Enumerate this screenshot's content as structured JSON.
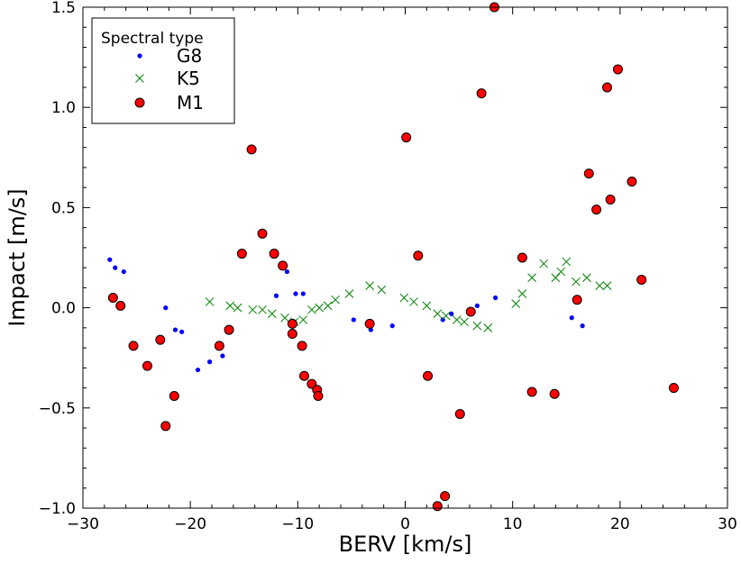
{
  "chart_data": {
    "type": "scatter",
    "xlabel": "BERV [km/s]",
    "ylabel": "Impact [m/s]",
    "xlim": [
      -30,
      30
    ],
    "ylim": [
      -1.0,
      1.5
    ],
    "xticks": [
      -30,
      -20,
      -10,
      0,
      10,
      20,
      30
    ],
    "xtick_labels": [
      "−30",
      "−20",
      "−10",
      "0",
      "10",
      "20",
      "30"
    ],
    "yticks": [
      -1.0,
      -0.5,
      0.0,
      0.5,
      1.0,
      1.5
    ],
    "ytick_labels": [
      "−1.0",
      "−0.5",
      "0.0",
      "0.5",
      "1.0",
      "1.5"
    ],
    "grid": false,
    "legend": {
      "title": "Spectral type",
      "placement": "top-left",
      "entries": [
        "G8",
        "K5",
        "M1"
      ]
    },
    "series": [
      {
        "name": "G8",
        "marker": "dot",
        "color": "#0000ff",
        "points": [
          [
            -27.5,
            0.24
          ],
          [
            -27.0,
            0.2
          ],
          [
            -26.2,
            0.18
          ],
          [
            -22.3,
            0.0
          ],
          [
            -21.4,
            -0.11
          ],
          [
            -20.8,
            -0.12
          ],
          [
            -19.3,
            -0.31
          ],
          [
            -18.2,
            -0.27
          ],
          [
            -17.0,
            -0.24
          ],
          [
            -12.0,
            0.06
          ],
          [
            -11.0,
            0.18
          ],
          [
            -10.2,
            0.07
          ],
          [
            -9.5,
            0.07
          ],
          [
            -4.8,
            -0.06
          ],
          [
            -3.2,
            -0.11
          ],
          [
            -1.2,
            -0.09
          ],
          [
            3.5,
            -0.06
          ],
          [
            4.3,
            -0.03
          ],
          [
            6.0,
            -0.02
          ],
          [
            6.7,
            0.01
          ],
          [
            8.4,
            0.05
          ],
          [
            15.5,
            -0.05
          ],
          [
            16.5,
            -0.09
          ]
        ]
      },
      {
        "name": "K5",
        "marker": "x",
        "color": "#008000",
        "points": [
          [
            -18.2,
            0.03
          ],
          [
            -16.3,
            0.01
          ],
          [
            -15.6,
            0.0
          ],
          [
            -14.2,
            -0.01
          ],
          [
            -13.3,
            -0.01
          ],
          [
            -12.4,
            -0.03
          ],
          [
            -11.2,
            -0.05
          ],
          [
            -10.3,
            -0.07
          ],
          [
            -9.5,
            -0.06
          ],
          [
            -8.7,
            -0.01
          ],
          [
            -8.0,
            0.0
          ],
          [
            -7.2,
            0.01
          ],
          [
            -6.5,
            0.04
          ],
          [
            -5.2,
            0.07
          ],
          [
            -3.3,
            0.11
          ],
          [
            -2.2,
            0.09
          ],
          [
            -0.1,
            0.05
          ],
          [
            0.8,
            0.03
          ],
          [
            2.0,
            0.01
          ],
          [
            3.0,
            -0.03
          ],
          [
            3.8,
            -0.04
          ],
          [
            4.8,
            -0.06
          ],
          [
            5.5,
            -0.07
          ],
          [
            6.7,
            -0.09
          ],
          [
            7.7,
            -0.1
          ],
          [
            10.3,
            0.02
          ],
          [
            10.9,
            0.07
          ],
          [
            11.8,
            0.15
          ],
          [
            12.9,
            0.22
          ],
          [
            14.0,
            0.15
          ],
          [
            14.5,
            0.18
          ],
          [
            15.0,
            0.23
          ],
          [
            15.9,
            0.13
          ],
          [
            16.9,
            0.15
          ],
          [
            18.1,
            0.11
          ],
          [
            18.8,
            0.11
          ]
        ]
      },
      {
        "name": "M1",
        "marker": "circle",
        "color": "#ff0000",
        "points": [
          [
            -27.2,
            0.05
          ],
          [
            -26.5,
            0.01
          ],
          [
            -25.3,
            -0.19
          ],
          [
            -24.0,
            -0.29
          ],
          [
            -22.8,
            -0.16
          ],
          [
            -22.3,
            -0.59
          ],
          [
            -21.5,
            -0.44
          ],
          [
            -17.3,
            -0.19
          ],
          [
            -16.4,
            -0.11
          ],
          [
            -15.2,
            0.27
          ],
          [
            -14.3,
            0.79
          ],
          [
            -13.3,
            0.37
          ],
          [
            -12.2,
            0.27
          ],
          [
            -11.4,
            0.21
          ],
          [
            -10.5,
            -0.08
          ],
          [
            -10.5,
            -0.13
          ],
          [
            -9.6,
            -0.19
          ],
          [
            -9.4,
            -0.34
          ],
          [
            -8.7,
            -0.38
          ],
          [
            -8.2,
            -0.41
          ],
          [
            -8.1,
            -0.44
          ],
          [
            -3.3,
            -0.08
          ],
          [
            0.1,
            0.85
          ],
          [
            1.2,
            0.26
          ],
          [
            2.1,
            -0.34
          ],
          [
            3.0,
            -0.99
          ],
          [
            3.7,
            -0.94
          ],
          [
            5.1,
            -0.53
          ],
          [
            6.1,
            -0.02
          ],
          [
            7.1,
            1.07
          ],
          [
            8.3,
            1.5
          ],
          [
            10.9,
            0.25
          ],
          [
            11.8,
            -0.42
          ],
          [
            13.9,
            -0.43
          ],
          [
            16.0,
            0.04
          ],
          [
            17.1,
            0.67
          ],
          [
            17.8,
            0.49
          ],
          [
            18.8,
            1.1
          ],
          [
            19.1,
            0.54
          ],
          [
            19.8,
            1.19
          ],
          [
            21.1,
            0.63
          ],
          [
            22.0,
            0.14
          ],
          [
            25.0,
            -0.4
          ]
        ]
      }
    ]
  }
}
